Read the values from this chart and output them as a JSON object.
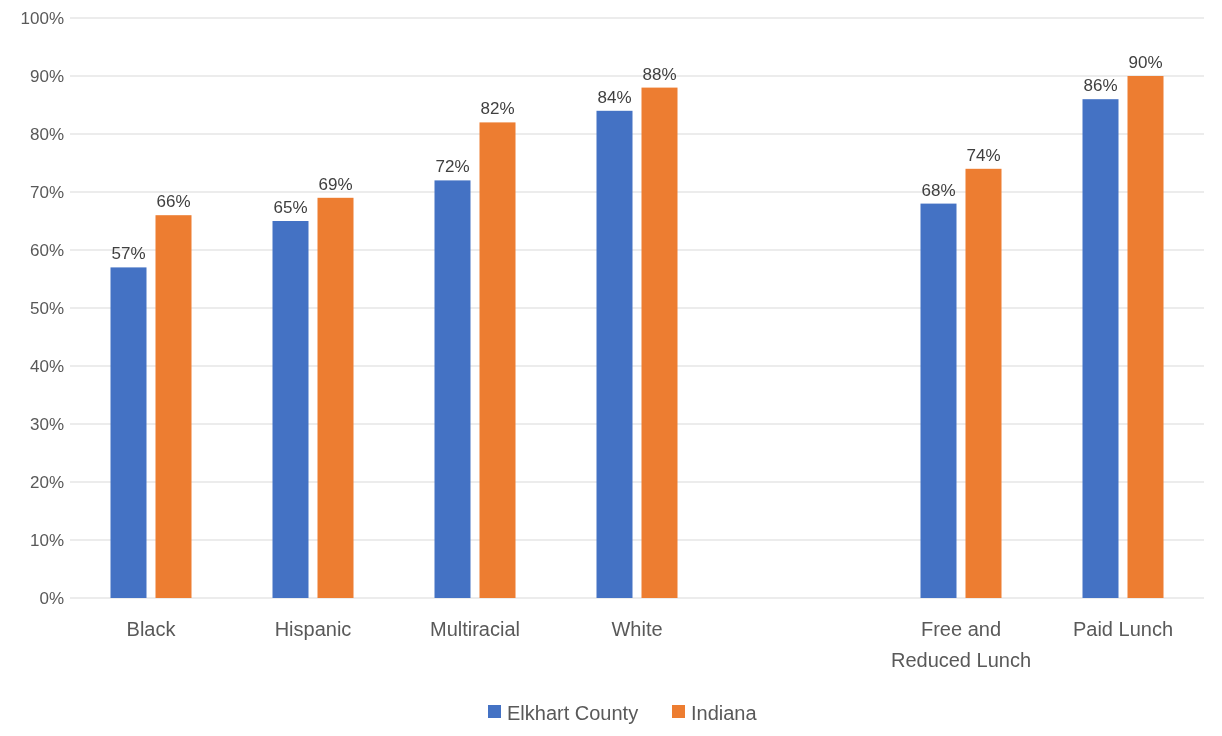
{
  "chart_data": {
    "type": "bar",
    "categories": [
      "Black",
      "Hispanic",
      "Multiracial",
      "White",
      null,
      "Free and Reduced Lunch",
      "Paid Lunch"
    ],
    "series": [
      {
        "name": "Elkhart County",
        "color": "#4472c4",
        "values": [
          57,
          65,
          72,
          84,
          null,
          68,
          86
        ],
        "value_labels": [
          "57%",
          "65%",
          "72%",
          "84%",
          null,
          "68%",
          "86%"
        ]
      },
      {
        "name": "Indiana",
        "color": "#ed7d31",
        "values": [
          66,
          69,
          82,
          88,
          null,
          74,
          90
        ],
        "value_labels": [
          "66%",
          "69%",
          "82%",
          "88%",
          null,
          "74%",
          "90%"
        ]
      }
    ],
    "ylim": [
      0,
      100
    ],
    "yticks": [
      {
        "value": 0,
        "label": "0%"
      },
      {
        "value": 10,
        "label": "10%"
      },
      {
        "value": 20,
        "label": "20%"
      },
      {
        "value": 30,
        "label": "30%"
      },
      {
        "value": 40,
        "label": "40%"
      },
      {
        "value": 50,
        "label": "50%"
      },
      {
        "value": 60,
        "label": "60%"
      },
      {
        "value": 70,
        "label": "70%"
      },
      {
        "value": 80,
        "label": "80%"
      },
      {
        "value": 90,
        "label": "90%"
      },
      {
        "value": 100,
        "label": "100%"
      }
    ],
    "grid": "y",
    "legend": "bottom"
  }
}
